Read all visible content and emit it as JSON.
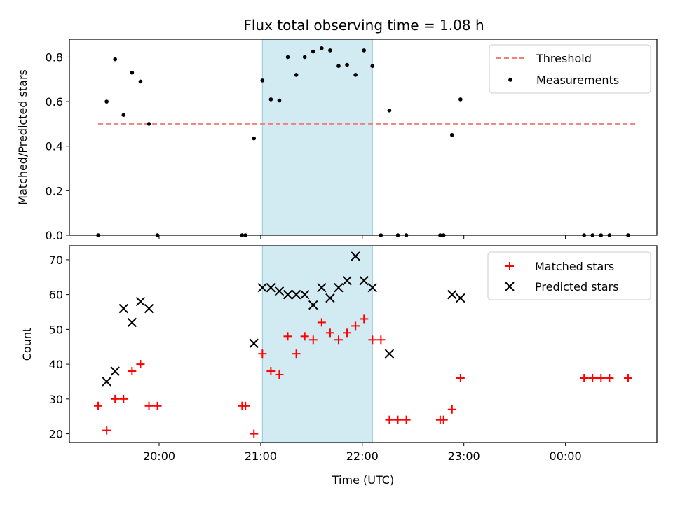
{
  "chart_data": [
    {
      "type": "scatter",
      "title": "Flux total observing time = 1.08 h",
      "ylabel": "Matched/Predicted stars",
      "xlabel": "",
      "ylim": [
        0,
        0.88
      ],
      "yticks": [
        0.0,
        0.2,
        0.4,
        0.6,
        0.8
      ],
      "ytick_labels": [
        "0.0",
        "0.2",
        "0.4",
        "0.6",
        "0.8"
      ],
      "legend_position": "top-right",
      "shaded_interval": [
        "21:01",
        "22:06"
      ],
      "shade_color": "#add8e6",
      "threshold": {
        "name": "Threshold",
        "value": 0.5,
        "x_start": "19:24",
        "x_end": "00:42",
        "color": "#f08080"
      },
      "series": [
        {
          "name": "Measurements",
          "color": "#000000",
          "marker": "dot",
          "points": [
            {
              "x": "19:24",
              "y": 0.0
            },
            {
              "x": "19:29",
              "y": 0.6
            },
            {
              "x": "19:34",
              "y": 0.79
            },
            {
              "x": "19:39",
              "y": 0.54
            },
            {
              "x": "19:44",
              "y": 0.73
            },
            {
              "x": "19:49",
              "y": 0.69
            },
            {
              "x": "19:54",
              "y": 0.5
            },
            {
              "x": "19:59",
              "y": 0.0
            },
            {
              "x": "20:49",
              "y": 0.0
            },
            {
              "x": "20:51",
              "y": 0.0
            },
            {
              "x": "20:56",
              "y": 0.435
            },
            {
              "x": "21:01",
              "y": 0.695
            },
            {
              "x": "21:06",
              "y": 0.61
            },
            {
              "x": "21:11",
              "y": 0.605
            },
            {
              "x": "21:16",
              "y": 0.8
            },
            {
              "x": "21:21",
              "y": 0.72
            },
            {
              "x": "21:26",
              "y": 0.8
            },
            {
              "x": "21:31",
              "y": 0.825
            },
            {
              "x": "21:36",
              "y": 0.84
            },
            {
              "x": "21:41",
              "y": 0.83
            },
            {
              "x": "21:46",
              "y": 0.76
            },
            {
              "x": "21:51",
              "y": 0.765
            },
            {
              "x": "21:56",
              "y": 0.72
            },
            {
              "x": "22:01",
              "y": 0.83
            },
            {
              "x": "22:06",
              "y": 0.76
            },
            {
              "x": "22:11",
              "y": 0.0
            },
            {
              "x": "22:16",
              "y": 0.56
            },
            {
              "x": "22:21",
              "y": 0.0
            },
            {
              "x": "22:26",
              "y": 0.0
            },
            {
              "x": "22:46",
              "y": 0.0
            },
            {
              "x": "22:48",
              "y": 0.0
            },
            {
              "x": "22:53",
              "y": 0.45
            },
            {
              "x": "22:58",
              "y": 0.61
            },
            {
              "x": "00:11",
              "y": 0.0
            },
            {
              "x": "00:16",
              "y": 0.0
            },
            {
              "x": "00:21",
              "y": 0.0
            },
            {
              "x": "00:26",
              "y": 0.0
            },
            {
              "x": "00:37",
              "y": 0.0
            }
          ]
        }
      ]
    },
    {
      "type": "scatter",
      "title": "",
      "ylabel": "Count",
      "xlabel": "Time (UTC)",
      "ylim": [
        17.5,
        74
      ],
      "yticks": [
        20,
        30,
        40,
        50,
        60,
        70
      ],
      "ytick_labels": [
        "20",
        "30",
        "40",
        "50",
        "60",
        "70"
      ],
      "x_range": [
        "19:07",
        "00:54"
      ],
      "xticks": [
        "20:00",
        "21:00",
        "22:00",
        "23:00",
        "00:00"
      ],
      "xtick_labels": [
        "20:00",
        "21:00",
        "22:00",
        "23:00",
        "00:00"
      ],
      "legend_position": "top-right",
      "shaded_interval": [
        "21:01",
        "22:06"
      ],
      "shade_color": "#add8e6",
      "series": [
        {
          "name": "Matched stars",
          "color": "#ff0000",
          "marker": "plus",
          "points": [
            {
              "x": "19:24",
              "y": 28
            },
            {
              "x": "19:29",
              "y": 21
            },
            {
              "x": "19:34",
              "y": 30
            },
            {
              "x": "19:39",
              "y": 30
            },
            {
              "x": "19:44",
              "y": 38
            },
            {
              "x": "19:49",
              "y": 40
            },
            {
              "x": "19:54",
              "y": 28
            },
            {
              "x": "19:59",
              "y": 28
            },
            {
              "x": "20:49",
              "y": 28
            },
            {
              "x": "20:51",
              "y": 28
            },
            {
              "x": "20:56",
              "y": 20
            },
            {
              "x": "21:01",
              "y": 43
            },
            {
              "x": "21:06",
              "y": 38
            },
            {
              "x": "21:11",
              "y": 37
            },
            {
              "x": "21:16",
              "y": 48
            },
            {
              "x": "21:21",
              "y": 43
            },
            {
              "x": "21:26",
              "y": 48
            },
            {
              "x": "21:31",
              "y": 47
            },
            {
              "x": "21:36",
              "y": 52
            },
            {
              "x": "21:41",
              "y": 49
            },
            {
              "x": "21:46",
              "y": 47
            },
            {
              "x": "21:51",
              "y": 49
            },
            {
              "x": "21:56",
              "y": 51
            },
            {
              "x": "22:01",
              "y": 53
            },
            {
              "x": "22:06",
              "y": 47
            },
            {
              "x": "22:11",
              "y": 47
            },
            {
              "x": "22:16",
              "y": 24
            },
            {
              "x": "22:21",
              "y": 24
            },
            {
              "x": "22:26",
              "y": 24
            },
            {
              "x": "22:46",
              "y": 24
            },
            {
              "x": "22:48",
              "y": 24
            },
            {
              "x": "22:53",
              "y": 27
            },
            {
              "x": "22:58",
              "y": 36
            },
            {
              "x": "00:11",
              "y": 36
            },
            {
              "x": "00:16",
              "y": 36
            },
            {
              "x": "00:21",
              "y": 36
            },
            {
              "x": "00:26",
              "y": 36
            },
            {
              "x": "00:37",
              "y": 36
            }
          ]
        },
        {
          "name": "Predicted stars",
          "color": "#000000",
          "marker": "x",
          "points": [
            {
              "x": "19:29",
              "y": 35
            },
            {
              "x": "19:34",
              "y": 38
            },
            {
              "x": "19:39",
              "y": 56
            },
            {
              "x": "19:44",
              "y": 52
            },
            {
              "x": "19:49",
              "y": 58
            },
            {
              "x": "19:54",
              "y": 56
            },
            {
              "x": "20:56",
              "y": 46
            },
            {
              "x": "21:01",
              "y": 62
            },
            {
              "x": "21:06",
              "y": 62
            },
            {
              "x": "21:11",
              "y": 61
            },
            {
              "x": "21:16",
              "y": 60
            },
            {
              "x": "21:21",
              "y": 60
            },
            {
              "x": "21:26",
              "y": 60
            },
            {
              "x": "21:31",
              "y": 57
            },
            {
              "x": "21:36",
              "y": 62
            },
            {
              "x": "21:41",
              "y": 59
            },
            {
              "x": "21:46",
              "y": 62
            },
            {
              "x": "21:51",
              "y": 64
            },
            {
              "x": "21:56",
              "y": 71
            },
            {
              "x": "22:01",
              "y": 64
            },
            {
              "x": "22:06",
              "y": 62
            },
            {
              "x": "22:16",
              "y": 43
            },
            {
              "x": "22:53",
              "y": 60
            },
            {
              "x": "22:58",
              "y": 59
            }
          ]
        }
      ]
    }
  ]
}
